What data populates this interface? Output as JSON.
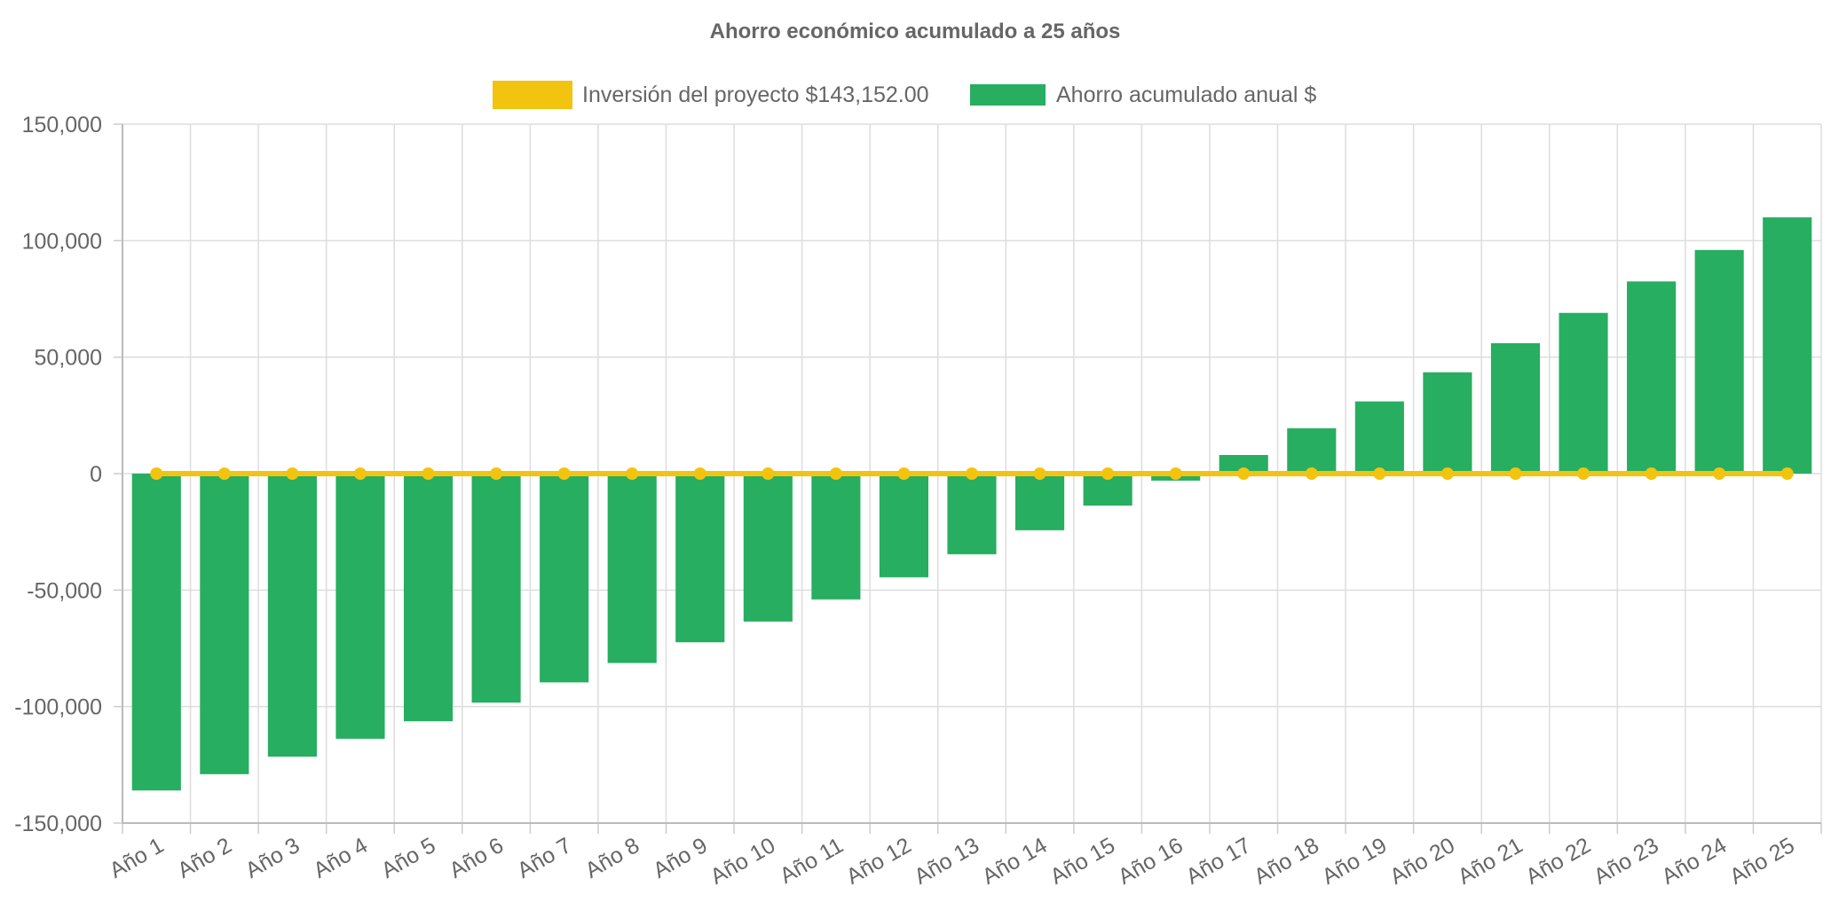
{
  "chart_data": {
    "type": "bar",
    "title": "Ahorro económico acumulado a 25 años",
    "categories": [
      "Año 1",
      "Año 2",
      "Año 3",
      "Año 4",
      "Año 5",
      "Año 6",
      "Año 7",
      "Año 8",
      "Año 9",
      "Año 10",
      "Año 11",
      "Año 12",
      "Año 13",
      "Año 14",
      "Año 15",
      "Año 16",
      "Año 17",
      "Año 18",
      "Año 19",
      "Año 20",
      "Año 21",
      "Año 22",
      "Año 23",
      "Año 24",
      "Año 25"
    ],
    "series": [
      {
        "name": "Inversión del proyecto $143,152.00",
        "type": "line",
        "color": "#f2c40f",
        "values": [
          0,
          0,
          0,
          0,
          0,
          0,
          0,
          0,
          0,
          0,
          0,
          0,
          0,
          0,
          0,
          0,
          0,
          0,
          0,
          0,
          0,
          0,
          0,
          0,
          0
        ]
      },
      {
        "name": "Ahorro acumulado anual $",
        "type": "bar",
        "color": "#27ae60",
        "values": [
          -136000,
          -129000,
          -121500,
          -113800,
          -106300,
          -98300,
          -89600,
          -81300,
          -72400,
          -63500,
          -54000,
          -44500,
          -34600,
          -24300,
          -13700,
          -3000,
          8000,
          19500,
          31000,
          43500,
          56000,
          69000,
          82500,
          96000,
          110000
        ]
      }
    ],
    "ylim": [
      -150000,
      150000
    ],
    "yticks": [
      150000,
      100000,
      50000,
      0,
      -50000,
      -100000,
      -150000
    ],
    "ytick_labels": [
      "150,000",
      "100,000",
      "50,000",
      "0",
      "-50,000",
      "-100,000",
      "-150,000"
    ],
    "grid": true,
    "legend_position": "top"
  }
}
